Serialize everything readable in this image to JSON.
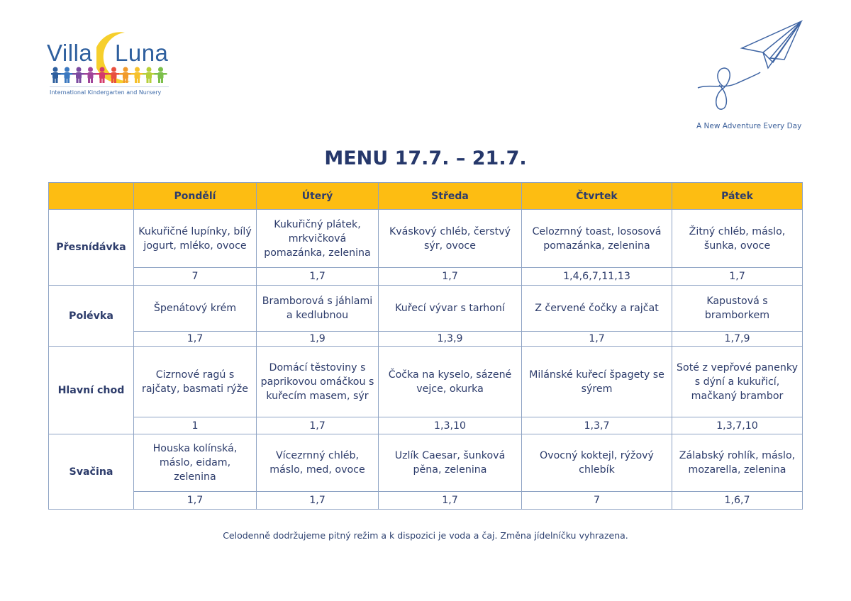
{
  "logo": {
    "brand_left": "Villa",
    "brand_right": "Luna",
    "subtitle": "International Kindergarten and Nursery",
    "moon_color": "#f6cf2c"
  },
  "tagline": "A New Adventure Every Day",
  "title": "MENU 17.7. – 21.7.",
  "colors": {
    "header": "#fdbd12",
    "text": "#2d3c6b",
    "border": "#8ea3c4"
  },
  "table": {
    "days": [
      "Pondělí",
      "Úterý",
      "Středa",
      "Čtvrtek",
      "Pátek"
    ],
    "meals": [
      {
        "name": "Přesnídávka",
        "dishes": [
          "Kukuřičné lupínky, bílý jogurt, mléko, ovoce",
          "Kukuřičný plátek, mrkvičková pomazánka, zelenina",
          "Kváskový chléb, čerstvý sýr, ovoce",
          "Celozrnný toast, lososová pomazánka, zelenina",
          "Žitný chléb, máslo, šunka, ovoce"
        ],
        "allergens": [
          "7",
          "1,7",
          "1,7",
          "1,4,6,7,11,13",
          "1,7"
        ]
      },
      {
        "name": "Polévka",
        "dishes": [
          "Špenátový krém",
          "Bramborová s jáhlami a kedlubnou",
          "Kuřecí vývar s tarhoní",
          "Z červené čočky a rajčat",
          "Kapustová s bramborkem"
        ],
        "allergens": [
          "1,7",
          "1,9",
          "1,3,9",
          "1,7",
          "1,7,9"
        ]
      },
      {
        "name": "Hlavní chod",
        "dishes": [
          "Cizrnové ragú s rajčaty, basmati rýže",
          "Domácí těstoviny s paprikovou omáčkou s kuřecím masem, sýr",
          "Čočka na kyselo, sázené vejce, okurka",
          "Milánské kuřecí špagety se sýrem",
          "Soté z vepřové panenky s dýní a kukuřicí, mačkaný brambor"
        ],
        "allergens": [
          "1",
          "1,7",
          "1,3,10",
          "1,3,7",
          "1,3,7,10"
        ]
      },
      {
        "name": "Svačina",
        "dishes": [
          "Houska kolínská, máslo, eidam, zelenina",
          "Vícezrnný chléb, máslo, med, ovoce",
          "Uzlík Caesar, šunková pěna, zelenina",
          "Ovocný koktejl, rýžový chlebík",
          "Zálabský rohlík, máslo, mozarella, zelenina"
        ],
        "allergens": [
          "1,7",
          "1,7",
          "1,7",
          "7",
          "1,6,7"
        ]
      }
    ]
  },
  "footer": "Celodenně dodržujeme pitný režim a k dispozici je voda a čaj.  Změna jídelníčku vyhrazena."
}
